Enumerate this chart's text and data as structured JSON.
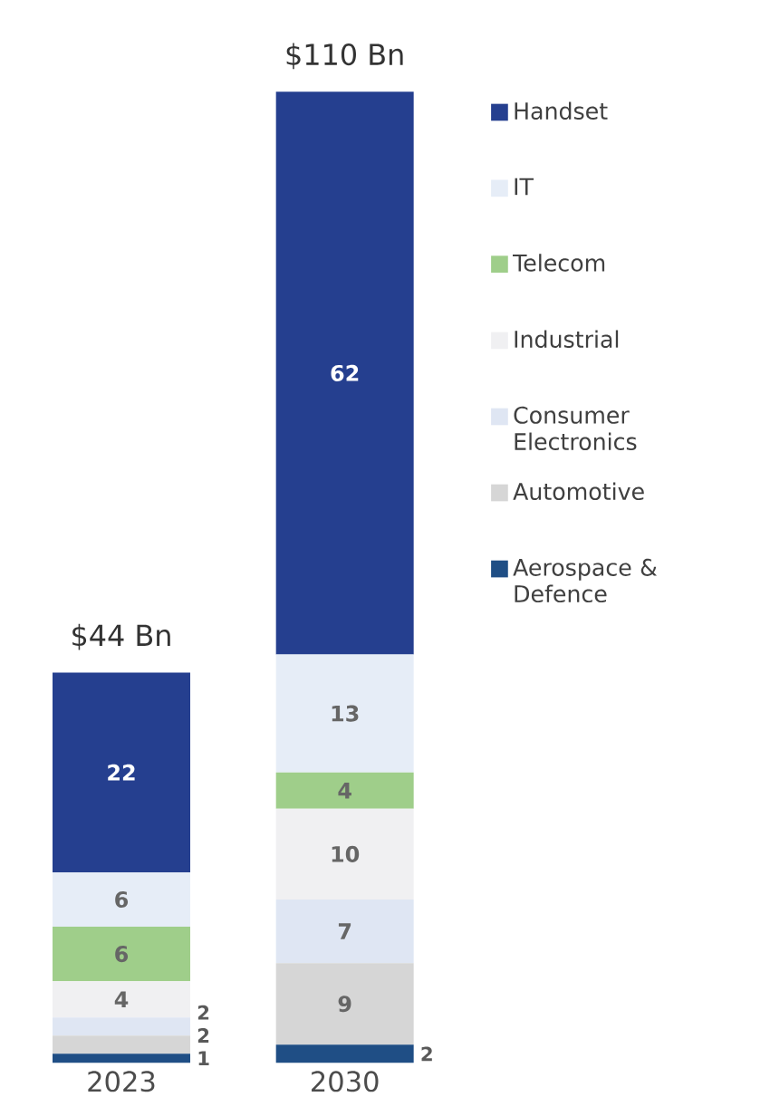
{
  "chart_data": {
    "type": "bar",
    "stacked": true,
    "categories": [
      "2023",
      "2030"
    ],
    "series": [
      {
        "name": "Aerospace & Defence",
        "color": "#1f4e85",
        "values": [
          1,
          2
        ]
      },
      {
        "name": "Automotive",
        "color": "#d6d6d6",
        "values": [
          2,
          9
        ]
      },
      {
        "name": "Consumer Electronics",
        "color": "#dfe6f3",
        "values": [
          2,
          7
        ]
      },
      {
        "name": "Industrial",
        "color": "#f0f0f2",
        "values": [
          4,
          10
        ]
      },
      {
        "name": "Telecom",
        "color": "#9fce8a",
        "values": [
          6,
          4
        ]
      },
      {
        "name": "IT",
        "color": "#e6edf7",
        "values": [
          6,
          13
        ]
      },
      {
        "name": "Handset",
        "color": "#253f8f",
        "values": [
          22,
          62
        ]
      }
    ],
    "data_labels": true,
    "totals": [
      "$44 Bn",
      "$110 Bn"
    ],
    "legend": "right"
  }
}
